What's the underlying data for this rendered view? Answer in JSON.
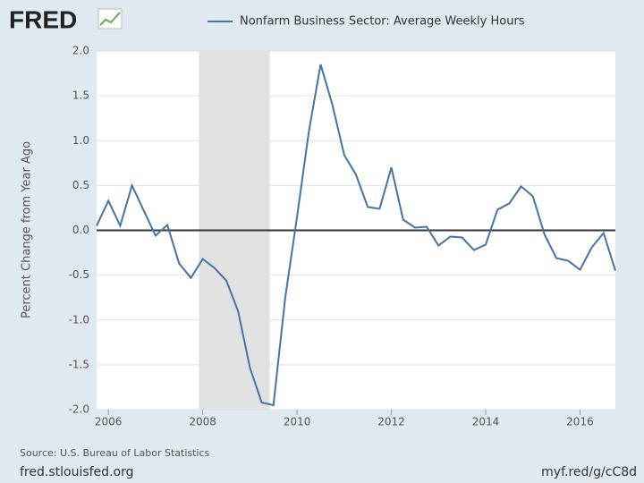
{
  "chart_data": {
    "type": "line",
    "logo": "FRED",
    "ylabel": "Percent Change from Year Ago",
    "source": "Source: U.S. Bureau of Labor Statistics",
    "footer_left": "fred.stlouisfed.org",
    "footer_right": "myf.red/g/cC8d",
    "x": [
      2005.75,
      2006,
      2006.25,
      2006.5,
      2006.75,
      2007,
      2007.25,
      2007.5,
      2007.75,
      2008,
      2008.25,
      2008.5,
      2008.75,
      2009,
      2009.25,
      2009.5,
      2009.75,
      2010,
      2010.25,
      2010.5,
      2010.75,
      2011,
      2011.25,
      2011.5,
      2011.75,
      2012,
      2012.25,
      2012.5,
      2012.75,
      2013,
      2013.25,
      2013.5,
      2013.75,
      2014,
      2014.25,
      2014.5,
      2014.75,
      2015,
      2015.25,
      2015.5,
      2015.75,
      2016,
      2016.25,
      2016.5,
      2016.75
    ],
    "series": [
      {
        "name": "Nonfarm Business Sector: Average Weekly Hours",
        "color": "#4572a7",
        "values": [
          0.05,
          0.33,
          0.05,
          0.5,
          0.22,
          -0.06,
          0.06,
          -0.37,
          -0.53,
          -0.32,
          -0.42,
          -0.56,
          -0.9,
          -1.53,
          -1.92,
          -1.95,
          -0.75,
          0.15,
          1.1,
          1.85,
          1.4,
          0.84,
          0.62,
          0.26,
          0.24,
          0.7,
          0.12,
          0.03,
          0.04,
          -0.17,
          -0.07,
          -0.08,
          -0.22,
          -0.16,
          0.23,
          0.3,
          0.49,
          0.38,
          -0.05,
          -0.31,
          -0.34,
          -0.44,
          -0.19,
          -0.03,
          -0.45
        ]
      }
    ],
    "xlim": [
      2005.75,
      2016.75
    ],
    "xticks": [
      2006,
      2008,
      2010,
      2012,
      2014,
      2016
    ],
    "ylim": [
      -2,
      2
    ],
    "yticks": [
      {
        "value": -2,
        "label": "-2.0"
      },
      -1.5,
      {
        "value": -1,
        "label": "-1.0"
      },
      -0.5,
      {
        "value": 0,
        "label": "0.0"
      },
      0.5,
      {
        "value": 1,
        "label": "1.0"
      },
      1.5,
      {
        "value": 2,
        "label": "2.0"
      }
    ],
    "shaded_range": [
      2007.92,
      2009.42
    ],
    "reference_line": 0,
    "grid": true
  }
}
